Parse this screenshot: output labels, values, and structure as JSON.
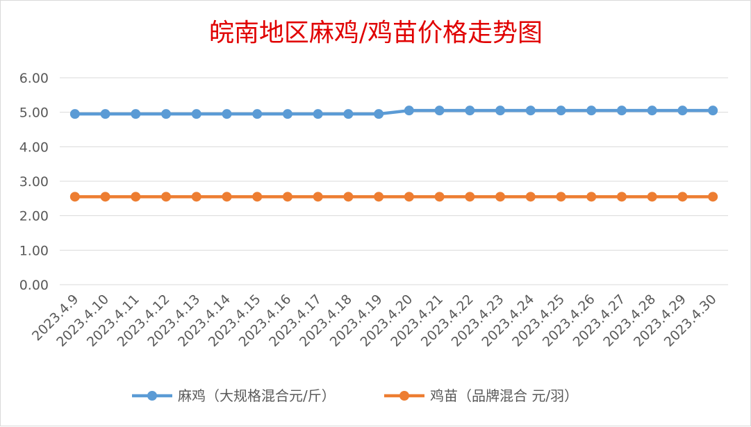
{
  "chart_data": {
    "type": "line",
    "title": "皖南地区麻鸡/鸡苗价格走势图",
    "xlabel": "",
    "ylabel": "",
    "categories": [
      "2023.4.9",
      "2023.4.10",
      "2023.4.11",
      "2023.4.12",
      "2023.4.13",
      "2023.4.14",
      "2023.4.15",
      "2023.4.16",
      "2023.4.17",
      "2023.4.18",
      "2023.4.19",
      "2023.4.20",
      "2023.4.21",
      "2023.4.22",
      "2023.4.23",
      "2023.4.24",
      "2023.4.25",
      "2023.4.26",
      "2023.4.27",
      "2023.4.28",
      "2023.4.29",
      "2023.4.30"
    ],
    "yticks": [
      "0.00",
      "1.00",
      "2.00",
      "3.00",
      "4.00",
      "5.00",
      "6.00"
    ],
    "ylim": [
      0,
      6
    ],
    "grid": true,
    "legend_position": "bottom",
    "series": [
      {
        "name": "麻鸡（大规格混合元/斤）",
        "color": "#5b9bd5",
        "values": [
          4.95,
          4.95,
          4.95,
          4.95,
          4.95,
          4.95,
          4.95,
          4.95,
          4.95,
          4.95,
          4.95,
          5.05,
          5.05,
          5.05,
          5.05,
          5.05,
          5.05,
          5.05,
          5.05,
          5.05,
          5.05,
          5.05
        ]
      },
      {
        "name": "鸡苗（品牌混合 元/羽）",
        "color": "#ed7d31",
        "values": [
          2.55,
          2.55,
          2.55,
          2.55,
          2.55,
          2.55,
          2.55,
          2.55,
          2.55,
          2.55,
          2.55,
          2.55,
          2.55,
          2.55,
          2.55,
          2.55,
          2.55,
          2.55,
          2.55,
          2.55,
          2.55,
          2.55
        ]
      }
    ]
  }
}
